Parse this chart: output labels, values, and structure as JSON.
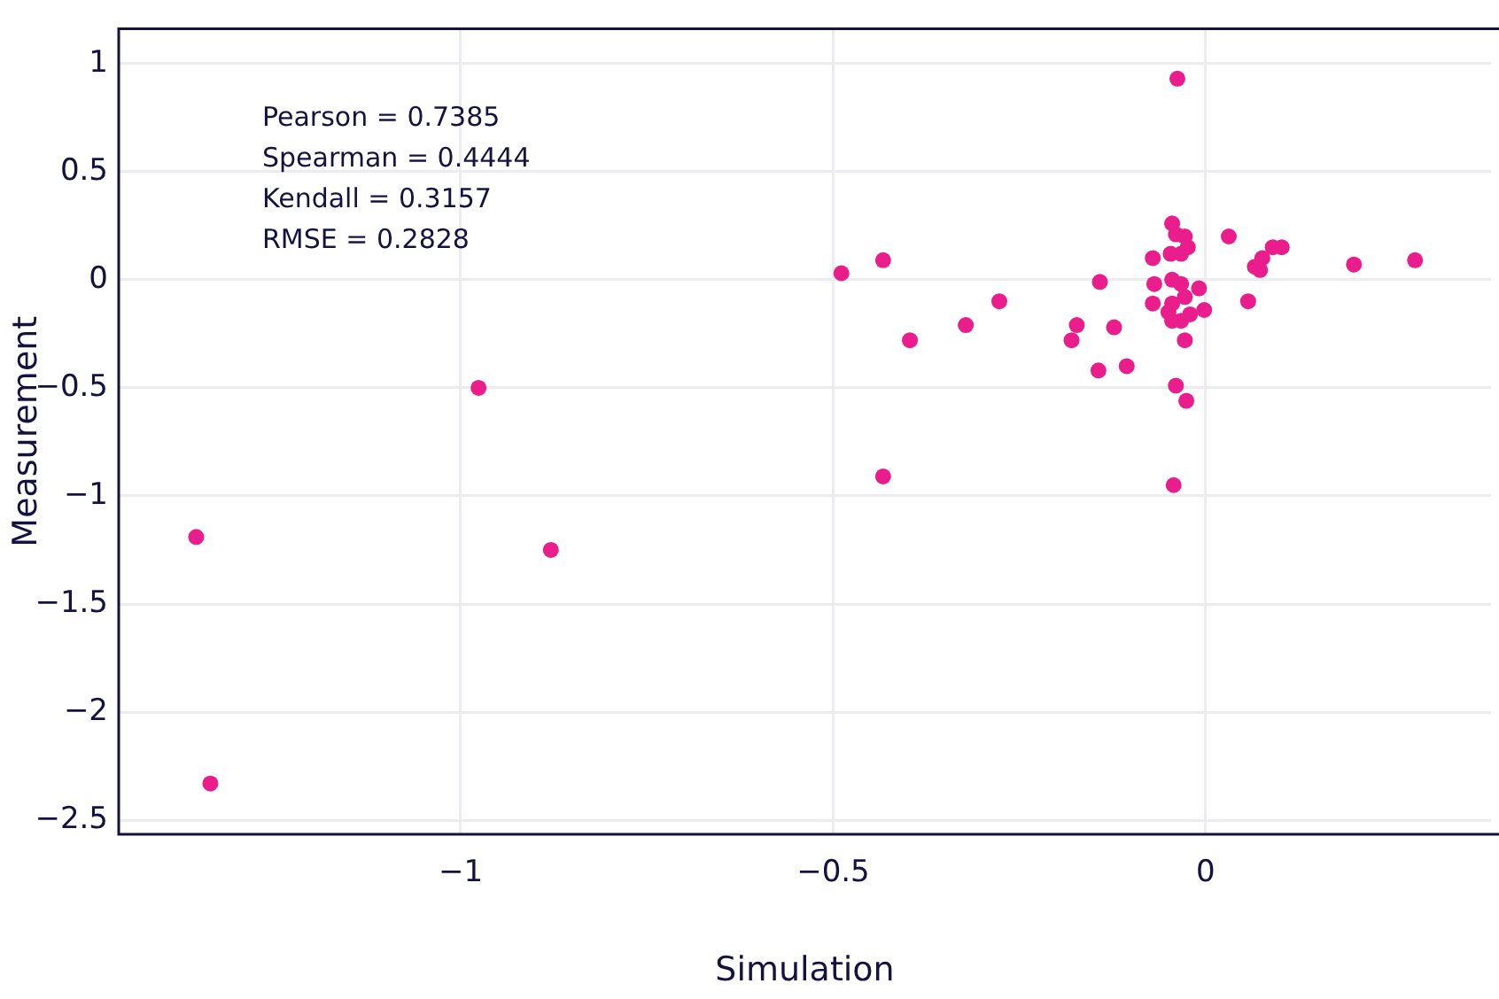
{
  "chart_data": {
    "type": "scatter",
    "xlabel": "Simulation",
    "ylabel": "Measurement",
    "annotations": [
      "Pearson = 0.7385",
      "Spearman = 0.4444",
      "Kendall = 0.3157",
      "RMSE = 0.2828"
    ],
    "xlim": [
      -1.459,
      0.383
    ],
    "xticks": [
      {
        "value": -1,
        "label": "−1"
      },
      {
        "value": -0.5,
        "label": "−0.5"
      },
      0
    ],
    "ylim": [
      -2.565,
      1.161
    ],
    "yticks": [
      {
        "value": -2.5,
        "label": "−2.5"
      },
      {
        "value": -2,
        "label": "−2"
      },
      {
        "value": -1.5,
        "label": "−1.5"
      },
      {
        "value": -1,
        "label": "−1"
      },
      {
        "value": -0.5,
        "label": "−0.5"
      },
      0,
      0.5,
      1
    ],
    "grid": true,
    "marker": "circle",
    "legend": false,
    "series": [
      {
        "color": "#e91e8c",
        "x": [
          -1.355,
          -1.336,
          -0.976,
          -0.879,
          -0.489,
          -0.433,
          -0.433,
          -0.397,
          -0.322,
          -0.277,
          -0.18,
          -0.173,
          -0.144,
          -0.142,
          -0.123,
          -0.106,
          -0.038,
          -0.045,
          -0.04,
          -0.028,
          -0.024,
          -0.047,
          -0.033,
          -0.071,
          0.031,
          0.09,
          0.102,
          0.076,
          0.066,
          0.073,
          0.199,
          0.281,
          -0.069,
          -0.045,
          -0.033,
          -0.009,
          -0.071,
          -0.045,
          -0.028,
          -0.002,
          -0.05,
          -0.021,
          -0.045,
          -0.033,
          0.057,
          -0.028,
          -0.04,
          -0.026,
          -0.043
        ],
        "values": [
          -1.19,
          -2.33,
          -0.5,
          -1.25,
          0.03,
          0.09,
          -0.91,
          -0.28,
          -0.21,
          -0.1,
          -0.28,
          -0.21,
          -0.42,
          -0.01,
          -0.22,
          -0.4,
          0.93,
          0.26,
          0.21,
          0.2,
          0.15,
          0.12,
          0.12,
          0.1,
          0.2,
          0.15,
          0.15,
          0.1,
          0.06,
          0.045,
          0.07,
          0.09,
          -0.02,
          0,
          -0.02,
          -0.04,
          -0.11,
          -0.11,
          -0.08,
          -0.14,
          -0.15,
          -0.16,
          -0.19,
          -0.19,
          -0.1,
          -0.28,
          -0.49,
          -0.56,
          -0.95
        ]
      }
    ]
  }
}
